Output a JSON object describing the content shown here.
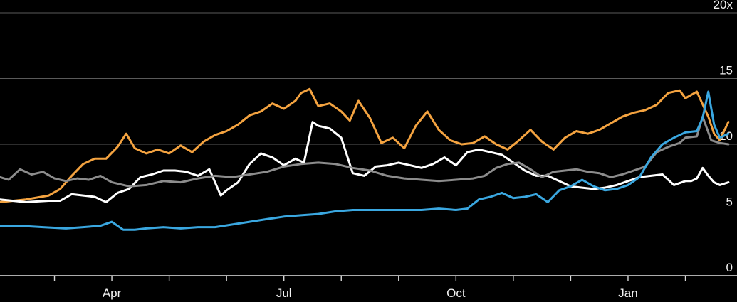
{
  "chart_data": {
    "type": "line",
    "title": "",
    "xlabel": "",
    "ylabel": "",
    "ylim": [
      0,
      20
    ],
    "ytick_labels": [
      "0",
      "5",
      "10",
      "15",
      "20x"
    ],
    "yticks": [
      0,
      5,
      10,
      15,
      20
    ],
    "xtick_labels": [
      "Apr",
      "Jul",
      "Oct",
      "Jan"
    ],
    "xticks": [
      4,
      7,
      10,
      13
    ],
    "xlim": [
      2.05,
      14.9
    ],
    "grid": true,
    "legend": "none",
    "colors": {
      "background": "#000000",
      "grid": "#5a5a5a",
      "text": "#f2f2f2"
    },
    "series": [
      {
        "color": "#f4a340",
        "x": [
          2.05,
          2.5,
          2.9,
          3.1,
          3.3,
          3.5,
          3.7,
          3.9,
          4.1,
          4.25,
          4.4,
          4.6,
          4.8,
          5.0,
          5.2,
          5.4,
          5.6,
          5.8,
          6.0,
          6.2,
          6.4,
          6.6,
          6.8,
          7.0,
          7.2,
          7.3,
          7.45,
          7.6,
          7.8,
          8.0,
          8.15,
          8.3,
          8.5,
          8.7,
          8.9,
          9.1,
          9.3,
          9.5,
          9.7,
          9.9,
          10.1,
          10.3,
          10.5,
          10.7,
          10.9,
          11.1,
          11.3,
          11.5,
          11.7,
          11.9,
          12.1,
          12.3,
          12.5,
          12.7,
          12.9,
          13.1,
          13.3,
          13.5,
          13.7,
          13.9,
          14.0,
          14.2,
          14.4,
          14.5,
          14.6,
          14.75
        ],
        "values": [
          5.6,
          5.8,
          6.1,
          6.6,
          7.6,
          8.5,
          8.9,
          8.9,
          9.8,
          10.8,
          9.7,
          9.3,
          9.6,
          9.3,
          9.9,
          9.4,
          10.2,
          10.7,
          11.0,
          11.5,
          12.2,
          12.5,
          13.1,
          12.7,
          13.3,
          13.9,
          14.2,
          12.9,
          13.1,
          12.5,
          11.8,
          13.3,
          12.0,
          10.1,
          10.5,
          9.7,
          11.4,
          12.5,
          11.1,
          10.3,
          10.0,
          10.1,
          10.6,
          10.0,
          9.6,
          10.3,
          11.1,
          10.2,
          9.6,
          10.5,
          11.0,
          10.8,
          11.1,
          11.6,
          12.1,
          12.4,
          12.6,
          13.0,
          13.9,
          14.1,
          13.5,
          14.0,
          12.1,
          10.8,
          10.3,
          11.7
        ]
      },
      {
        "color": "#ffffff",
        "x": [
          2.05,
          2.5,
          2.9,
          3.1,
          3.3,
          3.5,
          3.7,
          3.9,
          4.1,
          4.3,
          4.5,
          4.7,
          4.9,
          5.1,
          5.3,
          5.5,
          5.7,
          5.9,
          6.0,
          6.2,
          6.4,
          6.6,
          6.8,
          7.0,
          7.2,
          7.35,
          7.5,
          7.6,
          7.8,
          8.0,
          8.2,
          8.4,
          8.6,
          8.8,
          9.0,
          9.2,
          9.4,
          9.6,
          9.8,
          10.0,
          10.2,
          10.4,
          10.6,
          10.8,
          11.0,
          11.2,
          11.4,
          11.6,
          11.8,
          12.0,
          12.2,
          12.4,
          12.6,
          12.8,
          13.0,
          13.2,
          13.4,
          13.6,
          13.8,
          14.0,
          14.1,
          14.2,
          14.3,
          14.4,
          14.5,
          14.6,
          14.75
        ],
        "values": [
          5.8,
          5.6,
          5.7,
          5.7,
          6.2,
          6.1,
          6.0,
          5.6,
          6.3,
          6.6,
          7.5,
          7.7,
          8.0,
          8.0,
          7.9,
          7.6,
          8.1,
          6.1,
          6.5,
          7.1,
          8.5,
          9.3,
          9.0,
          8.4,
          8.9,
          8.6,
          11.7,
          11.4,
          11.2,
          10.5,
          7.8,
          7.6,
          8.3,
          8.4,
          8.6,
          8.4,
          8.2,
          8.5,
          9.0,
          8.4,
          9.4,
          9.6,
          9.4,
          9.2,
          8.6,
          8.0,
          7.6,
          7.6,
          7.2,
          6.8,
          6.7,
          6.6,
          6.7,
          6.9,
          7.2,
          7.5,
          7.6,
          7.7,
          6.9,
          7.2,
          7.2,
          7.4,
          8.2,
          7.6,
          7.1,
          6.9,
          7.1
        ]
      },
      {
        "color": "#8c8c8c",
        "x": [
          2.05,
          2.2,
          2.4,
          2.6,
          2.8,
          3.0,
          3.2,
          3.4,
          3.6,
          3.8,
          4.0,
          4.3,
          4.6,
          4.9,
          5.2,
          5.5,
          5.8,
          6.1,
          6.4,
          6.7,
          7.0,
          7.3,
          7.6,
          7.9,
          8.2,
          8.5,
          8.8,
          9.1,
          9.4,
          9.7,
          10.0,
          10.3,
          10.5,
          10.7,
          10.9,
          11.1,
          11.3,
          11.5,
          11.7,
          11.9,
          12.1,
          12.3,
          12.5,
          12.7,
          12.9,
          13.1,
          13.3,
          13.5,
          13.7,
          13.9,
          14.0,
          14.2,
          14.3,
          14.45,
          14.6,
          14.75
        ],
        "values": [
          7.5,
          7.3,
          8.1,
          7.7,
          7.9,
          7.4,
          7.2,
          7.4,
          7.3,
          7.6,
          7.1,
          6.8,
          6.9,
          7.2,
          7.1,
          7.4,
          7.6,
          7.5,
          7.7,
          7.9,
          8.3,
          8.5,
          8.6,
          8.5,
          8.2,
          8.0,
          7.6,
          7.4,
          7.3,
          7.2,
          7.3,
          7.4,
          7.6,
          8.2,
          8.5,
          8.6,
          8.1,
          7.5,
          7.9,
          8.0,
          8.1,
          7.9,
          7.8,
          7.5,
          7.7,
          8.0,
          8.3,
          9.4,
          9.8,
          10.1,
          10.5,
          10.6,
          12.1,
          10.3,
          10.1,
          10.0
        ]
      },
      {
        "color": "#3aa7e0",
        "x": [
          2.05,
          2.4,
          2.8,
          3.2,
          3.5,
          3.8,
          4.0,
          4.2,
          4.4,
          4.6,
          4.9,
          5.2,
          5.5,
          5.8,
          6.1,
          6.4,
          6.7,
          7.0,
          7.3,
          7.6,
          7.9,
          8.2,
          8.5,
          8.8,
          9.1,
          9.4,
          9.7,
          10.0,
          10.2,
          10.4,
          10.6,
          10.8,
          11.0,
          11.2,
          11.4,
          11.6,
          11.8,
          12.0,
          12.2,
          12.4,
          12.6,
          12.8,
          13.0,
          13.2,
          13.4,
          13.6,
          13.8,
          14.0,
          14.2,
          14.3,
          14.4,
          14.5,
          14.6,
          14.75
        ],
        "values": [
          3.8,
          3.8,
          3.7,
          3.6,
          3.7,
          3.8,
          4.1,
          3.5,
          3.5,
          3.6,
          3.7,
          3.6,
          3.7,
          3.7,
          3.9,
          4.1,
          4.3,
          4.5,
          4.6,
          4.7,
          4.9,
          5.0,
          5.0,
          5.0,
          5.0,
          5.0,
          5.1,
          5.0,
          5.1,
          5.8,
          6.0,
          6.3,
          5.9,
          6.0,
          6.2,
          5.6,
          6.5,
          6.8,
          7.3,
          6.8,
          6.5,
          6.6,
          6.9,
          7.5,
          9.0,
          10.0,
          10.5,
          10.9,
          11.0,
          12.0,
          14.0,
          11.5,
          10.5,
          10.8
        ]
      }
    ]
  }
}
